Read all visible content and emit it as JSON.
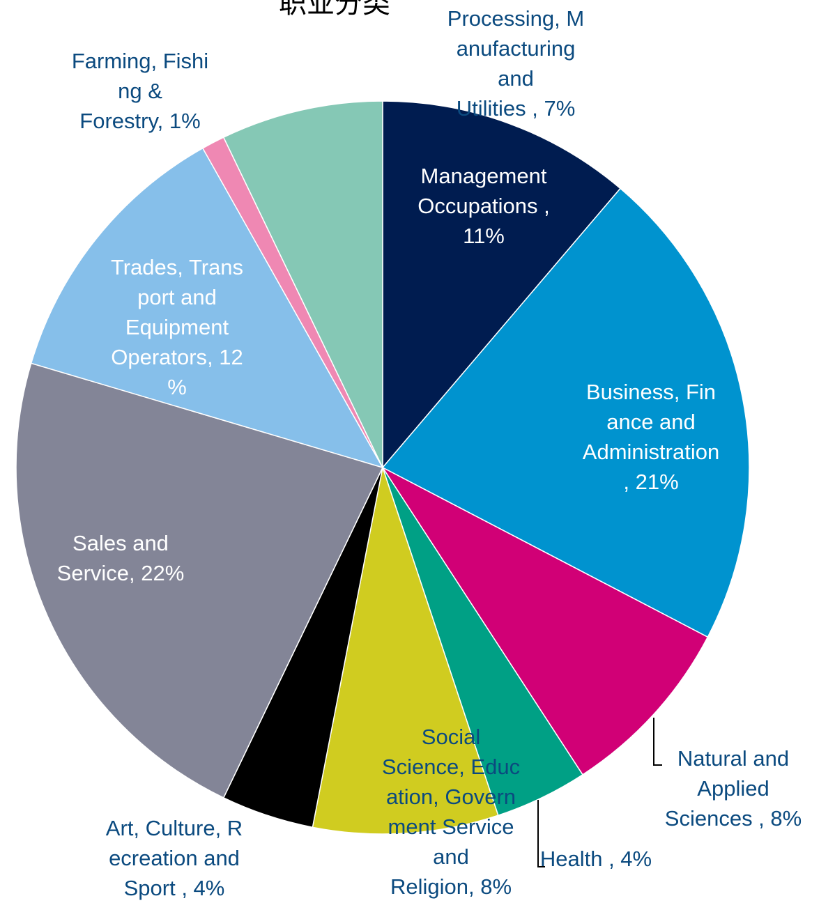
{
  "chart_data": {
    "type": "pie",
    "title": "职业分类",
    "slices": [
      {
        "label_lines": [
          "Management",
          "Occupations ,",
          "11%"
        ],
        "value": 11,
        "color": "#001c50",
        "label_color": "light"
      },
      {
        "label_lines": [
          "Business, Fin",
          "ance and",
          "Administration",
          ", 21%"
        ],
        "value": 21,
        "color": "#0093cf",
        "label_color": "light"
      },
      {
        "label_lines": [
          "Natural and",
          "Applied",
          "Sciences , 8%"
        ],
        "value": 8,
        "color": "#d10076",
        "label_color": "dark"
      },
      {
        "label_lines": [
          "Health , 4%"
        ],
        "value": 4,
        "color": "#00a085",
        "label_color": "dark"
      },
      {
        "label_lines": [
          "Social",
          "Science, Educ",
          "ation, Govern",
          "ment Service",
          "and",
          "Religion, 8%"
        ],
        "value": 8,
        "color": "#d0cc20",
        "label_color": "dark"
      },
      {
        "label_lines": [
          "Art, Culture, R",
          "ecreation and",
          "Sport , 4%"
        ],
        "value": 4,
        "color": "#000000",
        "label_color": "dark"
      },
      {
        "label_lines": [
          "Sales and",
          "Service, 22%"
        ],
        "value": 22,
        "color": "#838597",
        "label_color": "light"
      },
      {
        "label_lines": [
          "Trades, Trans",
          "port and",
          "Equipment",
          "Operators, 12",
          "%"
        ],
        "value": 12,
        "color": "#86bfea",
        "label_color": "light"
      },
      {
        "label_lines": [
          "Farming, Fishi",
          "ng &",
          "Forestry, 1%"
        ],
        "value": 1,
        "color": "#ef88b3",
        "label_color": "dark"
      },
      {
        "label_lines": [
          "Processing, M",
          "anufacturing",
          "and",
          "Utilities , 7%"
        ],
        "value": 7,
        "color": "#85c8b5",
        "label_color": "dark"
      }
    ],
    "legend": "none",
    "start_angle": "12 o'clock, clockwise"
  }
}
